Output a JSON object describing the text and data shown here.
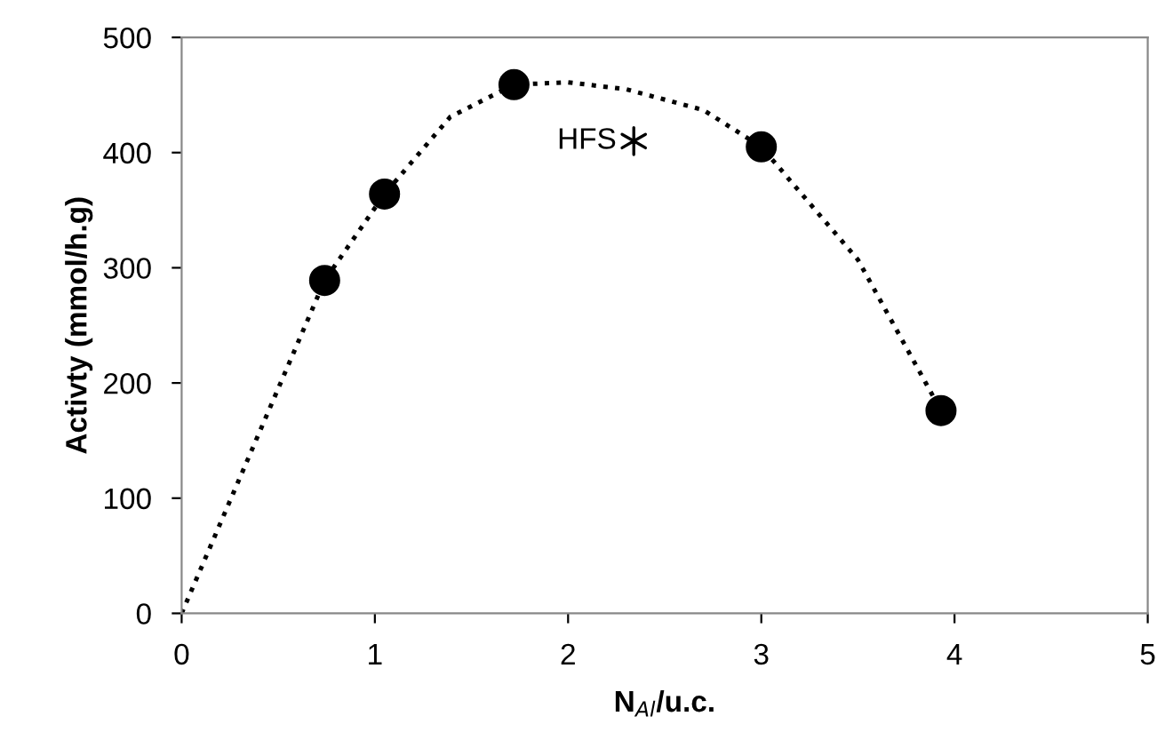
{
  "chart_data": {
    "type": "scatter",
    "xlabel": "N$_{Al}$/u.c.",
    "ylabel": "Activty (mmol/h.g)",
    "xlim": [
      0,
      5
    ],
    "ylim": [
      0,
      500
    ],
    "xticks": [
      0,
      1,
      2,
      3,
      4,
      5
    ],
    "yticks": [
      0,
      100,
      200,
      300,
      400,
      500
    ],
    "grid": false,
    "legend": false,
    "series": [
      {
        "type": "line",
        "color": "#000000",
        "line_style": "dotted",
        "marker": "none",
        "x": [
          0,
          0.74,
          1.05,
          1.39,
          1.72,
          2.0,
          2.3,
          2.7,
          3.0,
          3.5,
          3.93
        ],
        "values": [
          0,
          289,
          364,
          431,
          459,
          461,
          455,
          437,
          405,
          307,
          176
        ]
      },
      {
        "color": "#000000",
        "marker": "circle",
        "x": [
          0.74,
          1.05,
          1.72,
          3.0,
          3.93
        ],
        "values": [
          289,
          364,
          459,
          405,
          176
        ]
      },
      {
        "name": "HFS",
        "color": "#000000",
        "marker": "cross",
        "x": [
          2.34
        ],
        "values": [
          410
        ]
      }
    ]
  }
}
